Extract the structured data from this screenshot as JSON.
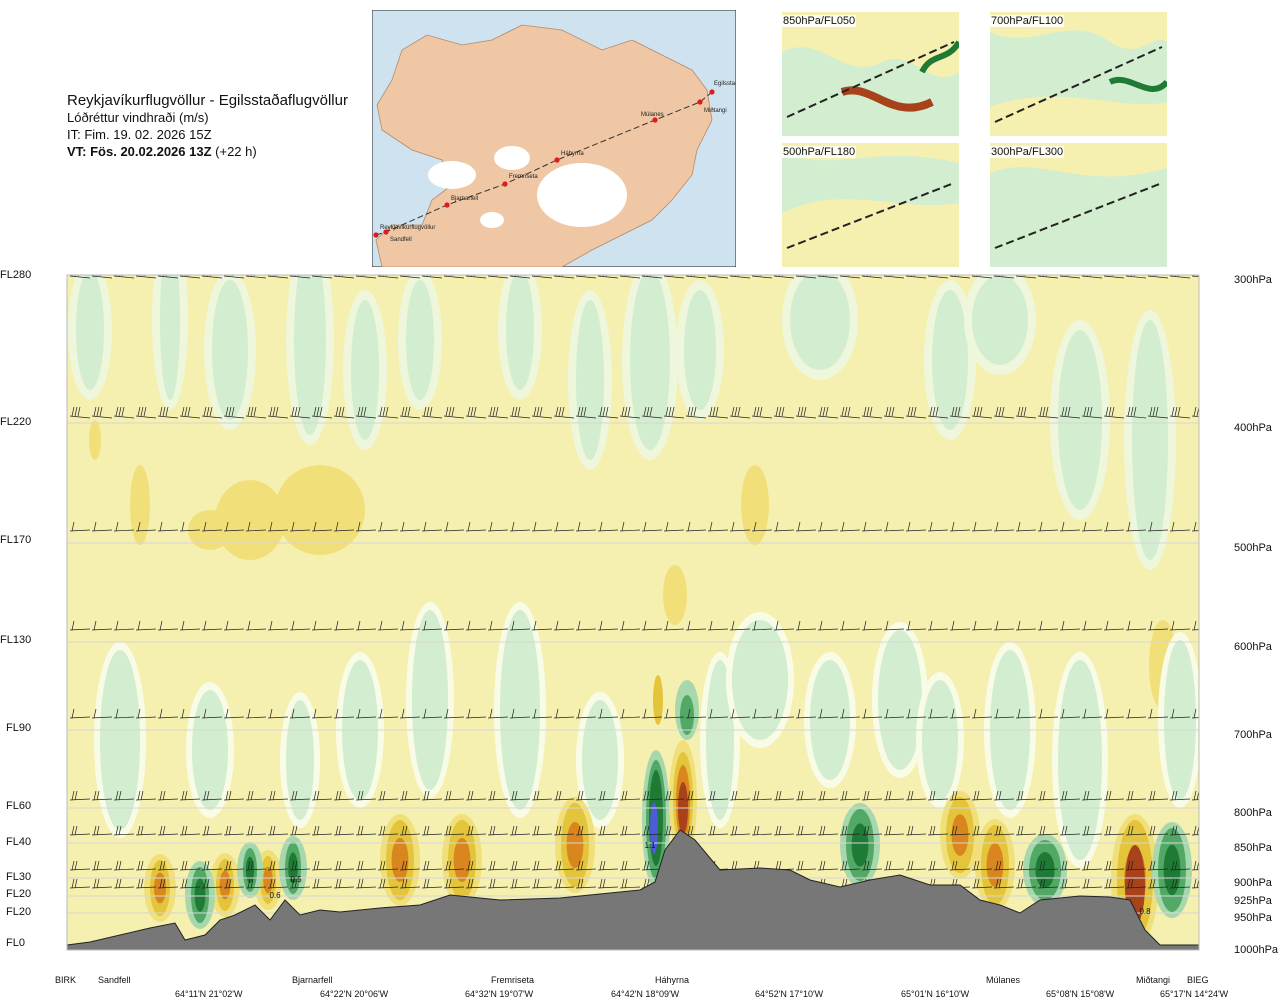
{
  "header": {
    "title": "Reykjavíkurflugvöllur - Egilsstaðaflugvöllur",
    "parameter": "Lóðréttur vindhraði (m/s)",
    "it": "IT: Fim. 19. 02. 2026 15Z",
    "vt_bold": "VT: Fös. 20.02.2026 13Z",
    "vt_rest": " (+22 h)"
  },
  "map": {
    "points": [
      {
        "name": "Reykjavíkurflugvöllur"
      },
      {
        "name": "Sandfell"
      },
      {
        "name": "Bjarnarfell"
      },
      {
        "name": "Fremriseta"
      },
      {
        "name": "Háhyrna"
      },
      {
        "name": "Múlanes"
      },
      {
        "name": "Miðtangi"
      },
      {
        "name": "Egilsstaðir"
      }
    ],
    "route_color": "#333333",
    "point_color": "#e01b1b"
  },
  "thumbnails": [
    {
      "label": "850hPa/FL050"
    },
    {
      "label": "700hPa/FL100"
    },
    {
      "label": "500hPa/FL180"
    },
    {
      "label": "300hPa/FL300"
    }
  ],
  "levels": [
    {
      "fl": "FL280",
      "p": "300hPa"
    },
    {
      "fl": "FL220",
      "p": "400hPa"
    },
    {
      "fl": "FL170",
      "p": "500hPa"
    },
    {
      "fl": "FL130",
      "p": "600hPa"
    },
    {
      "fl": "FL90",
      "p": "700hPa"
    },
    {
      "fl": "FL60",
      "p": "800hPa"
    },
    {
      "fl": "FL40",
      "p": "850hPa"
    },
    {
      "fl": "FL30",
      "p": "900hPa"
    },
    {
      "fl": "FL20",
      "p": "925hPa"
    },
    {
      "fl": "FL20",
      "p": "950hPa"
    },
    {
      "fl": "FL0",
      "p": "1000hPa"
    }
  ],
  "stations": [
    "BIRK",
    "Sandfell",
    "Bjarnarfell",
    "Fremriseta",
    "Háhyrna",
    "Múlanes",
    "Miðtangi",
    "BIEG"
  ],
  "coords": [
    "64°11'N 21°02'W",
    "64°22'N 20°06'W",
    "64°32'N 19°07'W",
    "64°42'N 18°09'W",
    "64°52'N 17°10'W",
    "65°01'N 16°10'W",
    "65°08'N 15°08'W",
    "65°17'N 14°24'W"
  ],
  "chart_data": {
    "type": "heatmap",
    "title": "Reykjavíkurflugvöllur - Egilsstaðaflugvöllur",
    "quantity": "Lóðréttur vindhraði (m/s)",
    "colors": {
      "strong_up": "#1f7a35",
      "up": "#52a865",
      "weak_up": "#a7d8ad",
      "slight_up": "#d2edcf",
      "neutral": "#f6f0b0",
      "slight_down": "#f1e07a",
      "down": "#e3c43a",
      "strong_down": "#d9861e",
      "very_strong_down": "#a8421a",
      "extreme_up": "#4d5bd8",
      "terrain": "#777777"
    },
    "peak_labels": [
      "0.6",
      "0.5",
      "1.1",
      "0.8"
    ],
    "features": [
      {
        "kind": "strong_up",
        "at": "Háhyrna",
        "peak": 1.1
      },
      {
        "kind": "strong_down",
        "at": "Háhyrna (lee)"
      },
      {
        "kind": "strong_down",
        "at": "Miðtangi",
        "peak": 0.8
      },
      {
        "kind": "up",
        "at": "Bjarnarfell",
        "peak": 0.6
      }
    ]
  }
}
